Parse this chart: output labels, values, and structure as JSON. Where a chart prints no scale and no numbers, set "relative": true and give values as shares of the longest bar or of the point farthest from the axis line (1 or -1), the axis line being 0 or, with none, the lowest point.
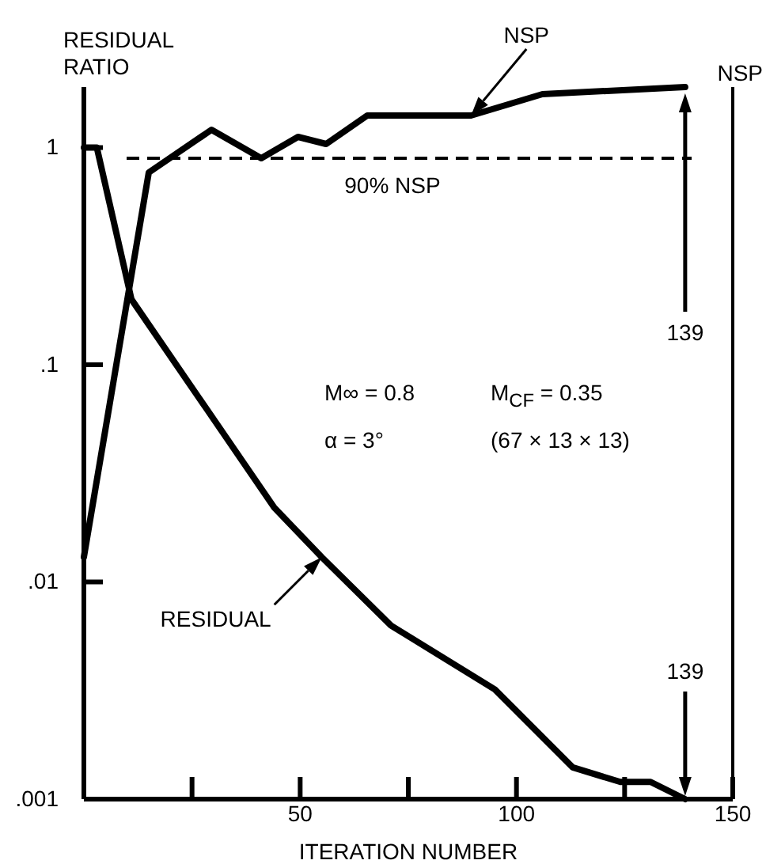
{
  "chart_data": [
    {
      "type": "line",
      "xlabel": "ITERATION NUMBER",
      "ylabel": "RESIDUAL RATIO",
      "xlim": [
        0,
        150
      ],
      "xticks": [
        {
          "value": 25,
          "label": null
        },
        50,
        {
          "value": 75,
          "label": null
        },
        100,
        {
          "value": 125,
          "label": null
        },
        150
      ],
      "ylim": [
        0.001,
        1.9
      ],
      "yticks": [
        1,
        {
          "value": 0.1,
          "label": ".1"
        },
        {
          "value": 0.01,
          "label": ".01"
        },
        {
          "value": 0.001,
          "label": ".001"
        }
      ],
      "log": "y",
      "grid": false,
      "marker": "none",
      "line_style": "solid",
      "series": [
        {
          "name": "RESIDUAL",
          "color": "#000000",
          "x": [
            0,
            3,
            11,
            44,
            55,
            71,
            95,
            113,
            124,
            131,
            139
          ],
          "values": [
            1,
            1,
            0.2,
            0.022,
            0.013,
            0.0063,
            0.0032,
            0.0014,
            0.0012,
            0.0012,
            0.001
          ]
        }
      ],
      "annotations": [
        "M∞ = 0.8",
        "M$_{CF}$ = 0.35",
        "α = 3°",
        "(67 × 13 × 13)",
        "139"
      ]
    },
    {
      "type": "line",
      "ylabel": "NSP",
      "relative": true,
      "xlim": [
        0,
        150
      ],
      "marker": "none",
      "line_style": "solid",
      "series": [
        {
          "name": "NSP",
          "color": "#000000",
          "x": [
            0,
            15,
            29.5,
            41,
            49.5,
            56,
            65.5,
            89.5,
            106,
            139
          ],
          "values": [
            0.34,
            0.88,
            0.94,
            0.9,
            0.93,
            0.92,
            0.96,
            0.96,
            0.99,
            1
          ]
        }
      ],
      "ref_lines": [
        {
          "axis": "y",
          "value": 0.9,
          "label": "90% NSP",
          "line_style": "dashed",
          "color": "#000000"
        }
      ],
      "annotations": [
        "139"
      ]
    }
  ]
}
